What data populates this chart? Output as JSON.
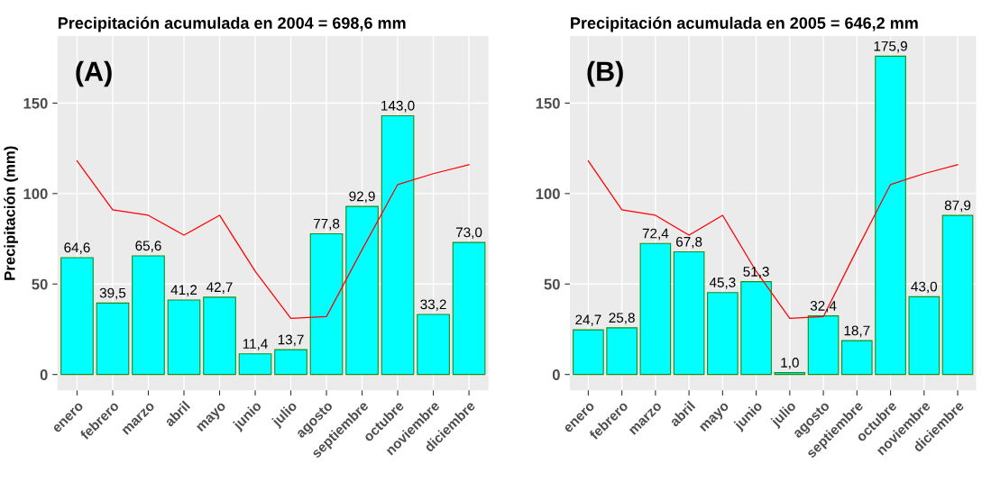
{
  "chart_data": [
    {
      "type": "bar",
      "title": "Precipitación acumulada en 2004 = 698,6 mm",
      "ylabel": "Precipitación (mm)",
      "annotations": [
        "(A)"
      ],
      "categories": [
        "enero",
        "febrero",
        "marzo",
        "abril",
        "mayo",
        "junio",
        "julio",
        "agosto",
        "septiembre",
        "octubre",
        "noviembre",
        "diciembre"
      ],
      "ylim": [
        -8.8,
        187
      ],
      "yticks": [
        0,
        50,
        100,
        150
      ],
      "grid": true,
      "series": [
        {
          "color": "#00ffff",
          "values": [
            64.6,
            39.5,
            65.6,
            41.2,
            42.7,
            11.4,
            13.7,
            77.8,
            92.9,
            143.0,
            33.2,
            73.0
          ],
          "value_labels": [
            "64,6",
            "39,5",
            "65,6",
            "41,2",
            "42,7",
            "11,4",
            "13,7",
            "77,8",
            "92,9",
            "143,0",
            "33,2",
            "73,0"
          ]
        },
        {
          "type": "line",
          "color": "#ff0000",
          "values": [
            118,
            91,
            88,
            77,
            88,
            57,
            31,
            32,
            69,
            105,
            111,
            116
          ]
        }
      ]
    },
    {
      "type": "bar",
      "title": "Precipitación acumulada en 2005 = 646,2 mm",
      "annotations": [
        "(B)"
      ],
      "categories": [
        "enero",
        "febrero",
        "marzo",
        "abril",
        "mayo",
        "junio",
        "julio",
        "agosto",
        "septiembre",
        "octubre",
        "noviembre",
        "diciembre"
      ],
      "ylim": [
        -8.8,
        187
      ],
      "yticks": [
        0,
        50,
        100,
        150
      ],
      "grid": true,
      "series": [
        {
          "color": "#00ffff",
          "values": [
            24.7,
            25.8,
            72.4,
            67.8,
            45.3,
            51.3,
            1.0,
            32.4,
            18.7,
            175.9,
            43.0,
            87.9
          ],
          "value_labels": [
            "24,7",
            "25,8",
            "72,4",
            "67,8",
            "45,3",
            "51,3",
            "1,0",
            "32,4",
            "18,7",
            "175,9",
            "43,0",
            "87,9"
          ]
        },
        {
          "type": "line",
          "color": "#ff0000",
          "values": [
            118,
            91,
            88,
            77,
            88,
            57,
            31,
            32,
            69,
            105,
            111,
            116
          ]
        }
      ]
    }
  ]
}
